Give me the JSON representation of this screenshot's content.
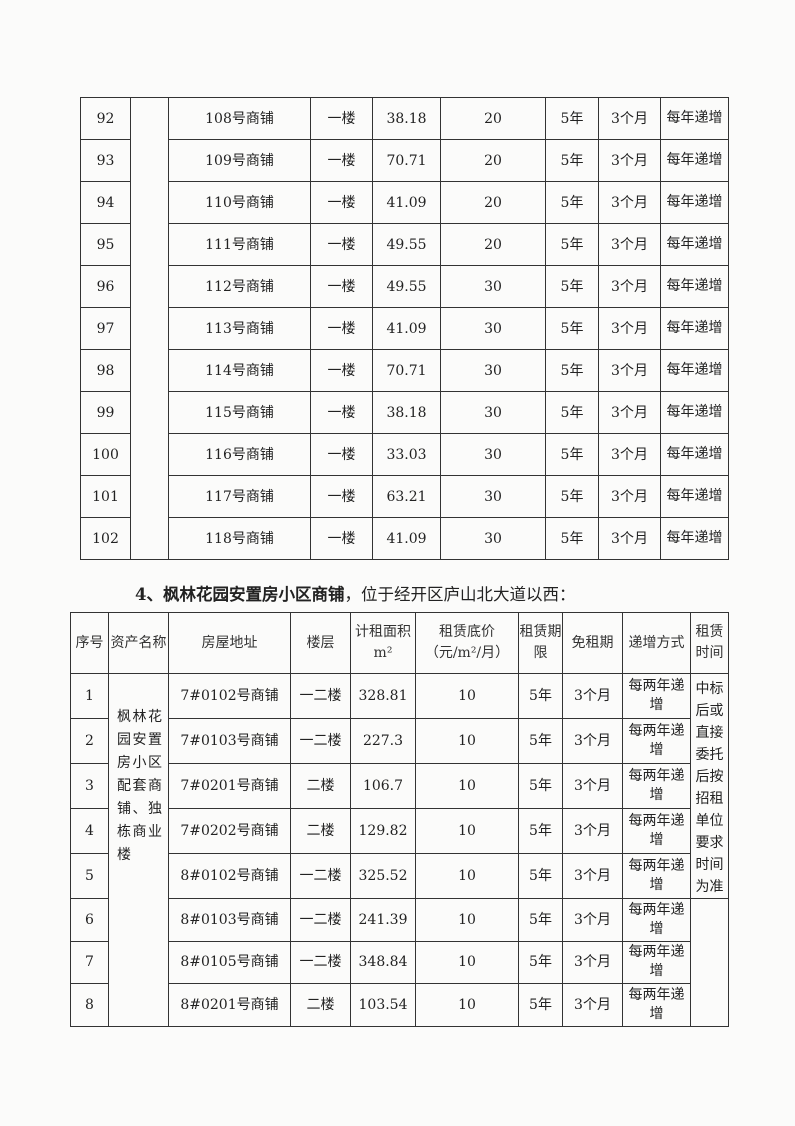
{
  "table1": {
    "rows": [
      [
        "92",
        "108号商铺",
        "一楼",
        "38.18",
        "20",
        "5年",
        "3个月",
        "每年递增"
      ],
      [
        "93",
        "109号商铺",
        "一楼",
        "70.71",
        "20",
        "5年",
        "3个月",
        "每年递增"
      ],
      [
        "94",
        "110号商铺",
        "一楼",
        "41.09",
        "20",
        "5年",
        "3个月",
        "每年递增"
      ],
      [
        "95",
        "111号商铺",
        "一楼",
        "49.55",
        "20",
        "5年",
        "3个月",
        "每年递增"
      ],
      [
        "96",
        "112号商铺",
        "一楼",
        "49.55",
        "30",
        "5年",
        "3个月",
        "每年递增"
      ],
      [
        "97",
        "113号商铺",
        "一楼",
        "41.09",
        "30",
        "5年",
        "3个月",
        "每年递增"
      ],
      [
        "98",
        "114号商铺",
        "一楼",
        "70.71",
        "30",
        "5年",
        "3个月",
        "每年递增"
      ],
      [
        "99",
        "115号商铺",
        "一楼",
        "38.18",
        "30",
        "5年",
        "3个月",
        "每年递增"
      ],
      [
        "100",
        "116号商铺",
        "一楼",
        "33.03",
        "30",
        "5年",
        "3个月",
        "每年递增"
      ],
      [
        "101",
        "117号商铺",
        "一楼",
        "63.21",
        "30",
        "5年",
        "3个月",
        "每年递增"
      ],
      [
        "102",
        "118号商铺",
        "一楼",
        "41.09",
        "30",
        "5年",
        "3个月",
        "每年递增"
      ]
    ]
  },
  "section4": {
    "heading_bold": "4、枫林花园安置房小区商铺",
    "heading_rest": "，位于经开区庐山北大道以西："
  },
  "table2": {
    "headers": [
      "序号",
      "资产名称",
      "房屋地址",
      "楼层",
      "计租面积m²",
      "租赁底价（元/m²/月）",
      "租赁期限",
      "免租期",
      "递增方式",
      "租赁时间"
    ],
    "asset_name": "枫林花园安置房小区配套商铺、独栋商业楼",
    "rental_time": "中标后或直接委托后按招租单位要求时间为准",
    "rows": [
      [
        "1",
        "7#0102号商铺",
        "一二楼",
        "328.81",
        "10",
        "5年",
        "3个月",
        "每两年递增"
      ],
      [
        "2",
        "7#0103号商铺",
        "一二楼",
        "227.3",
        "10",
        "5年",
        "3个月",
        "每两年递增"
      ],
      [
        "3",
        "7#0201号商铺",
        "二楼",
        "106.7",
        "10",
        "5年",
        "3个月",
        "每两年递增"
      ],
      [
        "4",
        "7#0202号商铺",
        "二楼",
        "129.82",
        "10",
        "5年",
        "3个月",
        "每两年递增"
      ],
      [
        "5",
        "8#0102号商铺",
        "一二楼",
        "325.52",
        "10",
        "5年",
        "3个月",
        "每两年递增"
      ],
      [
        "6",
        "8#0103号商铺",
        "一二楼",
        "241.39",
        "10",
        "5年",
        "3个月",
        "每两年递增"
      ],
      [
        "7",
        "8#0105号商铺",
        "一二楼",
        "348.84",
        "10",
        "5年",
        "3个月",
        "每两年递增"
      ],
      [
        "8",
        "8#0201号商铺",
        "二楼",
        "103.54",
        "10",
        "5年",
        "3个月",
        "每两年递增"
      ]
    ]
  }
}
